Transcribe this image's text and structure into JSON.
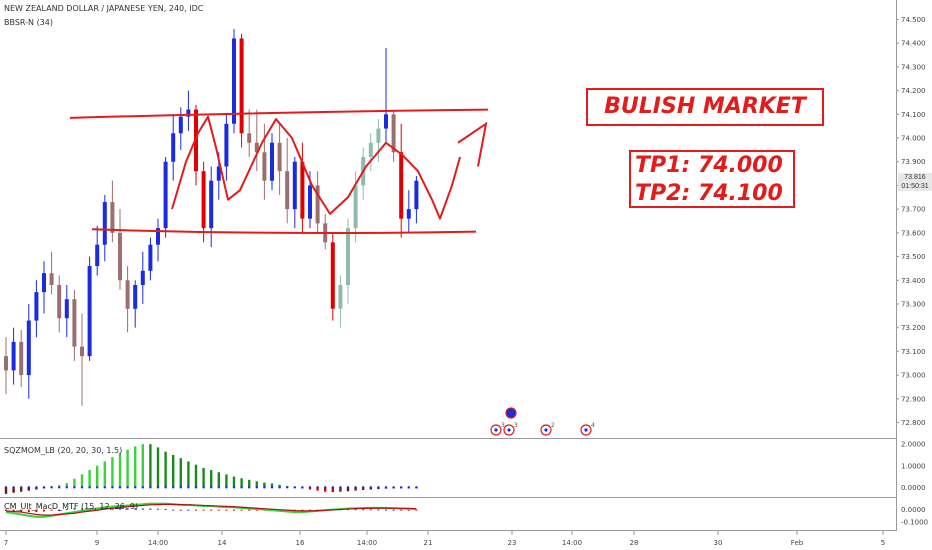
{
  "header": {
    "symbol_title": "NEW ZEALAND DOLLAR / JAPANESE YEN, 240, IDC",
    "indicator_1": "BBSR-N (34)",
    "indicator_2": "SQZMOM_LB (20, 20, 30, 1.5)",
    "indicator_3": "CM_Ult_MacD_MTF (15, 12, 26, 9)"
  },
  "annotations": {
    "market_label": "BULISH MARKET",
    "tp1": "TP1: 74.000",
    "tp2": "TP2: 74.100"
  },
  "last_price": {
    "value": "73.816",
    "countdown": "01:50:31",
    "color": "#e8e8e8"
  },
  "colors": {
    "up_candle": "#1a2be0",
    "down_candle": "#9b6f6f",
    "neutral_up": "#8fbcaa",
    "strong_down": "#e00000",
    "annotation_red": "#e31b1b",
    "momentum_green": "#3cd23c",
    "momentum_dark": "#1a4a1a"
  },
  "chart_data": [
    {
      "type": "candlestick",
      "title": "NEW ZEALAND DOLLAR / JAPANESE YEN, 240, IDC",
      "y_ticks": [
        "74.500",
        "74.400",
        "74.300",
        "74.200",
        "74.100",
        "74.000",
        "73.900",
        "73.800",
        "73.700",
        "73.600",
        "73.500",
        "73.400",
        "73.300",
        "73.200",
        "73.100",
        "73.000",
        "72.900",
        "72.800"
      ],
      "ylim": [
        72.76,
        74.54
      ],
      "x_ticks": [
        "7",
        "9",
        "14:00",
        "14",
        "16",
        "14:00",
        "21",
        "23",
        "14:00",
        "28",
        "30",
        "Feb",
        "5"
      ],
      "candles": [
        {
          "o": 73.08,
          "h": 73.16,
          "l": 72.92,
          "c": 73.02
        },
        {
          "o": 73.02,
          "h": 73.2,
          "l": 72.96,
          "c": 73.14
        },
        {
          "o": 73.14,
          "h": 73.19,
          "l": 72.95,
          "c": 73.0
        },
        {
          "o": 73.0,
          "h": 73.3,
          "l": 72.9,
          "c": 73.23
        },
        {
          "o": 73.23,
          "h": 73.4,
          "l": 73.16,
          "c": 73.35
        },
        {
          "o": 73.35,
          "h": 73.48,
          "l": 73.26,
          "c": 73.43
        },
        {
          "o": 73.43,
          "h": 73.52,
          "l": 73.34,
          "c": 73.38
        },
        {
          "o": 73.38,
          "h": 73.42,
          "l": 73.18,
          "c": 73.24
        },
        {
          "o": 73.24,
          "h": 73.38,
          "l": 73.16,
          "c": 73.32
        },
        {
          "o": 73.32,
          "h": 73.36,
          "l": 73.06,
          "c": 73.12
        },
        {
          "o": 73.12,
          "h": 73.26,
          "l": 72.87,
          "c": 73.08
        },
        {
          "o": 73.08,
          "h": 73.5,
          "l": 73.06,
          "c": 73.46
        },
        {
          "o": 73.46,
          "h": 73.63,
          "l": 73.42,
          "c": 73.55
        },
        {
          "o": 73.55,
          "h": 73.76,
          "l": 73.48,
          "c": 73.73
        },
        {
          "o": 73.73,
          "h": 73.82,
          "l": 73.56,
          "c": 73.6
        },
        {
          "o": 73.6,
          "h": 73.7,
          "l": 73.36,
          "c": 73.4
        },
        {
          "o": 73.4,
          "h": 73.46,
          "l": 73.18,
          "c": 73.28
        },
        {
          "o": 73.28,
          "h": 73.4,
          "l": 73.2,
          "c": 73.38
        },
        {
          "o": 73.38,
          "h": 73.52,
          "l": 73.3,
          "c": 73.44
        },
        {
          "o": 73.44,
          "h": 73.58,
          "l": 73.4,
          "c": 73.55
        },
        {
          "o": 73.55,
          "h": 73.66,
          "l": 73.48,
          "c": 73.62
        },
        {
          "o": 73.62,
          "h": 73.92,
          "l": 73.58,
          "c": 73.9
        },
        {
          "o": 73.9,
          "h": 74.1,
          "l": 73.82,
          "c": 74.02
        },
        {
          "o": 74.02,
          "h": 74.13,
          "l": 73.95,
          "c": 74.09
        },
        {
          "o": 74.09,
          "h": 74.2,
          "l": 74.03,
          "c": 74.12
        },
        {
          "o": 74.12,
          "h": 74.14,
          "l": 73.8,
          "c": 73.86
        },
        {
          "o": 73.86,
          "h": 73.9,
          "l": 73.56,
          "c": 73.62
        },
        {
          "o": 73.62,
          "h": 73.88,
          "l": 73.54,
          "c": 73.82
        },
        {
          "o": 73.82,
          "h": 73.94,
          "l": 73.74,
          "c": 73.88
        },
        {
          "o": 73.88,
          "h": 74.1,
          "l": 73.82,
          "c": 74.06
        },
        {
          "o": 74.06,
          "h": 74.46,
          "l": 74.02,
          "c": 74.42
        },
        {
          "o": 74.42,
          "h": 74.44,
          "l": 73.96,
          "c": 74.02
        },
        {
          "o": 74.02,
          "h": 74.12,
          "l": 73.92,
          "c": 73.98
        },
        {
          "o": 73.98,
          "h": 74.12,
          "l": 73.86,
          "c": 73.94
        },
        {
          "o": 73.94,
          "h": 74.06,
          "l": 73.74,
          "c": 73.82
        },
        {
          "o": 73.82,
          "h": 74.02,
          "l": 73.78,
          "c": 73.98
        },
        {
          "o": 73.98,
          "h": 74.06,
          "l": 73.76,
          "c": 73.86
        },
        {
          "o": 73.86,
          "h": 74.0,
          "l": 73.64,
          "c": 73.7
        },
        {
          "o": 73.7,
          "h": 73.92,
          "l": 73.62,
          "c": 73.9
        },
        {
          "o": 73.9,
          "h": 73.98,
          "l": 73.6,
          "c": 73.66
        },
        {
          "o": 73.66,
          "h": 73.86,
          "l": 73.62,
          "c": 73.8
        },
        {
          "o": 73.8,
          "h": 73.86,
          "l": 73.6,
          "c": 73.64
        },
        {
          "o": 73.64,
          "h": 73.68,
          "l": 73.53,
          "c": 73.56
        },
        {
          "o": 73.56,
          "h": 73.6,
          "l": 73.23,
          "c": 73.28
        },
        {
          "o": 73.28,
          "h": 73.42,
          "l": 73.2,
          "c": 73.38
        },
        {
          "o": 73.38,
          "h": 73.66,
          "l": 73.3,
          "c": 73.62
        },
        {
          "o": 73.62,
          "h": 73.86,
          "l": 73.56,
          "c": 73.8
        },
        {
          "o": 73.8,
          "h": 73.96,
          "l": 73.74,
          "c": 73.92
        },
        {
          "o": 73.92,
          "h": 74.02,
          "l": 73.86,
          "c": 73.98
        },
        {
          "o": 73.98,
          "h": 74.08,
          "l": 73.9,
          "c": 74.04
        },
        {
          "o": 74.04,
          "h": 74.38,
          "l": 73.98,
          "c": 74.1
        },
        {
          "o": 74.1,
          "h": 74.12,
          "l": 73.9,
          "c": 73.94
        },
        {
          "o": 73.94,
          "h": 74.06,
          "l": 73.58,
          "c": 73.66
        },
        {
          "o": 73.66,
          "h": 73.78,
          "l": 73.6,
          "c": 73.7
        },
        {
          "o": 73.7,
          "h": 73.84,
          "l": 73.64,
          "c": 73.82
        }
      ],
      "levels": {
        "resistance": 74.1,
        "support": 73.61
      },
      "event_markers": [
        "3",
        "3",
        "2",
        "4"
      ]
    },
    {
      "type": "bar",
      "title": "SQZMOM_LB (20, 20, 30, 1.5)",
      "y_ticks": [
        "2.0000",
        "1.0000",
        "0.0000"
      ],
      "ylim": [
        -0.4,
        2.1
      ],
      "values": [
        -0.3,
        -0.25,
        -0.2,
        -0.15,
        -0.1,
        -0.05,
        0.05,
        0.1,
        0.2,
        0.4,
        0.6,
        0.8,
        1.0,
        1.2,
        1.4,
        1.6,
        1.75,
        1.9,
        2.0,
        2.0,
        1.85,
        1.65,
        1.5,
        1.35,
        1.2,
        1.05,
        0.9,
        0.8,
        0.7,
        0.6,
        0.5,
        0.42,
        0.35,
        0.28,
        0.22,
        0.18,
        0.12,
        0.06,
        0.02,
        -0.05,
        -0.1,
        -0.15,
        -0.2,
        -0.22,
        -0.2,
        -0.18,
        -0.15,
        -0.12,
        -0.1,
        -0.08,
        -0.06,
        -0.05,
        -0.04,
        -0.03,
        -0.02
      ]
    },
    {
      "type": "line",
      "title": "CM_Ult_MacD_MTF (15, 12, 26, 9)",
      "y_ticks": [
        "0.0000",
        "-0.1000"
      ],
      "ylim": [
        -0.16,
        0.08
      ],
      "series": [
        {
          "values": [
            -0.02,
            -0.03,
            -0.04,
            -0.05,
            -0.06,
            -0.06,
            -0.05,
            -0.04,
            -0.03,
            -0.02,
            -0.01,
            0.0,
            0.01,
            0.02,
            0.025,
            0.03,
            0.035,
            0.04,
            0.045,
            0.05,
            0.05,
            0.05,
            0.045,
            0.04,
            0.04,
            0.035,
            0.03,
            0.03,
            0.025,
            0.02,
            0.02,
            0.015,
            0.01,
            0.005,
            0.0,
            -0.005,
            -0.01,
            -0.015,
            -0.02,
            -0.02,
            -0.015,
            -0.01,
            -0.005,
            0.0,
            0.005,
            0.01,
            0.012,
            0.014,
            0.015,
            0.015,
            0.014,
            0.012,
            0.01,
            0.008,
            0.006
          ]
        },
        {
          "values": [
            -0.01,
            -0.015,
            -0.02,
            -0.03,
            -0.04,
            -0.045,
            -0.045,
            -0.04,
            -0.035,
            -0.03,
            -0.02,
            -0.012,
            -0.005,
            0.005,
            0.012,
            0.018,
            0.024,
            0.03,
            0.035,
            0.04,
            0.042,
            0.044,
            0.044,
            0.042,
            0.04,
            0.038,
            0.035,
            0.032,
            0.03,
            0.027,
            0.024,
            0.02,
            0.016,
            0.012,
            0.008,
            0.004,
            0.0,
            -0.004,
            -0.008,
            -0.01,
            -0.01,
            -0.008,
            -0.005,
            -0.002,
            0.002,
            0.005,
            0.008,
            0.01,
            0.012,
            0.013,
            0.013,
            0.012,
            0.011,
            0.01,
            0.009
          ]
        }
      ]
    }
  ]
}
